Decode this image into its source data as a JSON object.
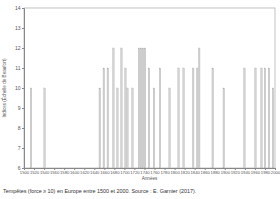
{
  "chart_data": {
    "type": "bar",
    "title": "Tempêtes (force ≥ 10) en Europe entre 1500 et 2000. Source : E. Garnier (2017).",
    "xlabel": "Années",
    "ylabel": "Indices (Échelle de Beaufort)",
    "x": [
      1514,
      1541,
      1651,
      1659,
      1667,
      1678,
      1686,
      1694,
      1702,
      1706,
      1716,
      1729,
      1733,
      1737,
      1741,
      1749,
      1759,
      1771,
      1790,
      1808,
      1818,
      1837,
      1845,
      1849,
      1876,
      1898,
      1939,
      1961,
      1973,
      1980,
      1988,
      1996
    ],
    "values": [
      10,
      10,
      10,
      11,
      11,
      12,
      10,
      12,
      11,
      10,
      10,
      12,
      12,
      12,
      12,
      11,
      10,
      11,
      10,
      11,
      11,
      11,
      11,
      12,
      11,
      10,
      11,
      11,
      11,
      11,
      11,
      10
    ],
    "color": "#d3d3d3",
    "xlim": [
      1500,
      2000
    ],
    "xticks": [
      1500,
      1520,
      1540,
      1560,
      1580,
      1600,
      1620,
      1640,
      1660,
      1680,
      1700,
      1720,
      1740,
      1760,
      1780,
      1800,
      1820,
      1840,
      1860,
      1880,
      1900,
      1920,
      1940,
      1960,
      1980,
      2000
    ],
    "ylim": [
      6,
      14
    ],
    "yticks": [
      6,
      7,
      8,
      9,
      10,
      11,
      12,
      13,
      14
    ],
    "grid": false
  }
}
